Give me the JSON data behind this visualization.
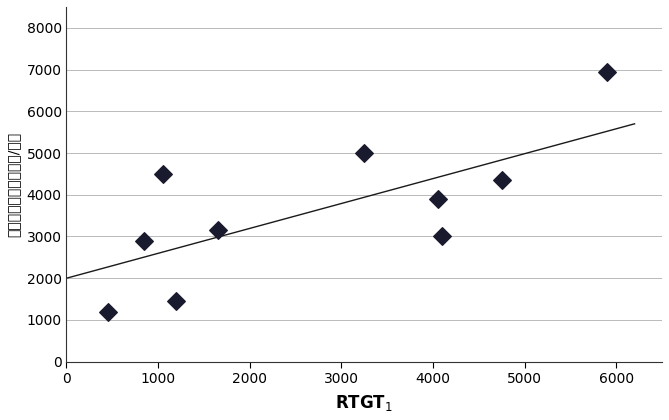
{
  "scatter_x": [
    450,
    850,
    1050,
    1200,
    1650,
    3250,
    4050,
    4100,
    4750,
    5900
  ],
  "scatter_y": [
    1200,
    2900,
    4500,
    1450,
    3150,
    5000,
    3900,
    3000,
    4350,
    6950
  ],
  "line_x": [
    0,
    6200
  ],
  "line_y": [
    2000,
    5700
  ],
  "xlabel": "RTGT$_1$",
  "ylabel": "直井气层日均产量（方/天）",
  "xlim": [
    0,
    6500
  ],
  "ylim": [
    0,
    8500
  ],
  "xticks": [
    0,
    1000,
    2000,
    3000,
    4000,
    5000,
    6000
  ],
  "yticks": [
    0,
    1000,
    2000,
    3000,
    4000,
    5000,
    6000,
    7000,
    8000
  ],
  "marker_color": "#1a1a2e",
  "line_color": "#1a1a1a",
  "background_color": "#ffffff",
  "grid_color": "#b0b0b0",
  "marker_size": 80,
  "marker": "D",
  "xlabel_fontsize": 12,
  "ylabel_fontsize": 10,
  "tick_fontsize": 10
}
